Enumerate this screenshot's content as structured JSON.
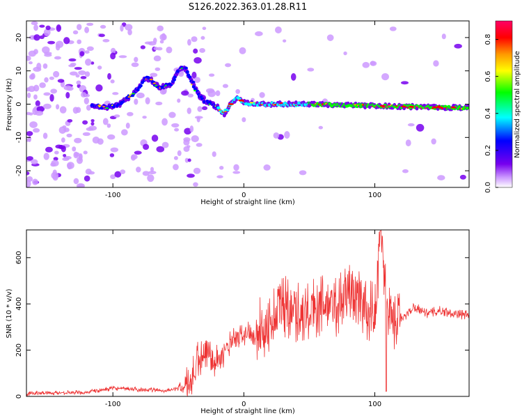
{
  "figure": {
    "title": "S126.2022.363.01.28.R11"
  },
  "chart_data": [
    {
      "type": "heatmap",
      "title": "S126.2022.363.01.28.R11",
      "xlabel": "Height of straight line (km)",
      "ylabel": "Frequency (Hz)",
      "xlim": [
        -166,
        172
      ],
      "ylim": [
        -25,
        25
      ],
      "x_ticks": [
        -100,
        0,
        100
      ],
      "y_ticks": [
        -20,
        -10,
        0,
        10,
        20
      ],
      "colorbar": {
        "label": "Normalized spectral amplitude",
        "range": [
          0.0,
          0.9
        ],
        "ticks": [
          0.0,
          0.2,
          0.4,
          0.6,
          0.8
        ],
        "colors": [
          "#ffffff",
          "#cc99ff",
          "#7700ee",
          "#0000ff",
          "#00ffff",
          "#00ff00",
          "#ffff00",
          "#ff9900",
          "#ff0000",
          "#ff0066"
        ]
      },
      "ridge_frequency": {
        "x": [
          -115,
          -105,
          -95,
          -85,
          -80,
          -75,
          -70,
          -65,
          -55,
          -50,
          -45,
          -40,
          -35,
          -30,
          -25,
          -20,
          -15,
          -10,
          -5,
          0,
          10,
          50,
          100,
          150,
          172
        ],
        "y": [
          -0.5,
          -1,
          0,
          3,
          5,
          8,
          7,
          5,
          6,
          10,
          11,
          7,
          3,
          1,
          0,
          -1,
          -3,
          0,
          2,
          0.5,
          0,
          0,
          -0.5,
          -1,
          -1
        ]
      }
    },
    {
      "type": "line",
      "title": "",
      "xlabel": "Height of straight line (km)",
      "ylabel": "SNR (10 * v/v)",
      "xlim": [
        -166,
        172
      ],
      "ylim": [
        0,
        720
      ],
      "x_ticks": [
        -100,
        0,
        100
      ],
      "y_ticks": [
        0,
        200,
        400,
        600
      ],
      "series": [
        {
          "name": "SNR",
          "color": "#ee3333",
          "x": [
            -166,
            -150,
            -120,
            -100,
            -80,
            -60,
            -45,
            -40,
            -35,
            -30,
            -25,
            -20,
            -10,
            0,
            10,
            20,
            30,
            40,
            50,
            60,
            70,
            80,
            90,
            100,
            104,
            110,
            115,
            120,
            130,
            140,
            150,
            160,
            172
          ],
          "y": [
            12,
            15,
            18,
            35,
            30,
            25,
            40,
            60,
            160,
            150,
            200,
            150,
            230,
            270,
            280,
            310,
            400,
            380,
            350,
            420,
            380,
            460,
            420,
            330,
            710,
            420,
            320,
            330,
            390,
            360,
            370,
            360,
            350
          ]
        }
      ]
    }
  ]
}
